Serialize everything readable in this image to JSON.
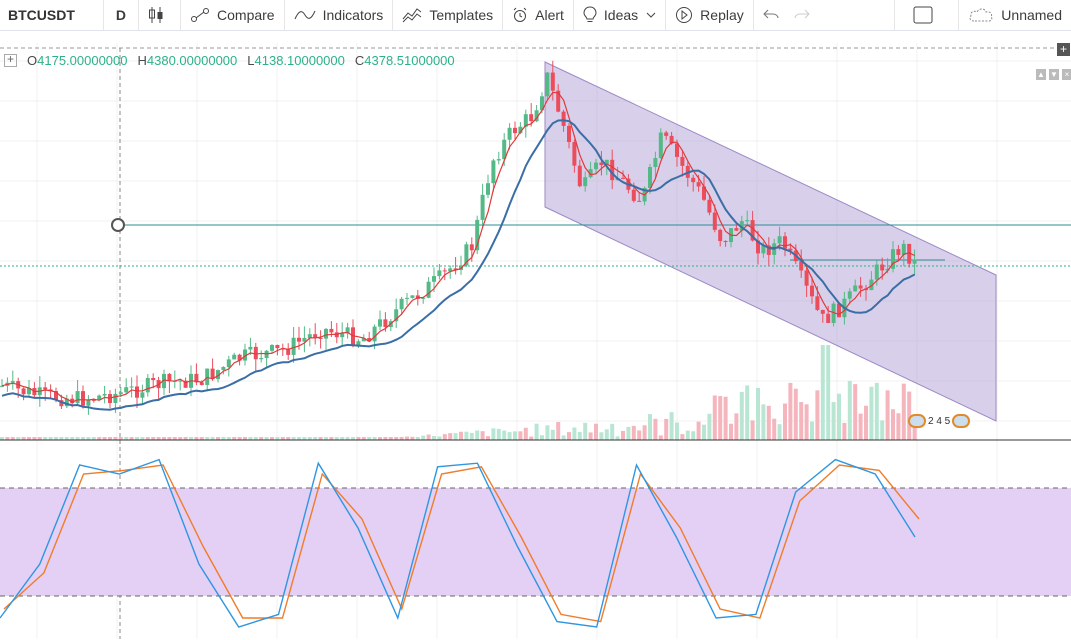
{
  "toolbar": {
    "symbol": "BTCUSDT",
    "interval": "D",
    "compare": "Compare",
    "indicators": "Indicators",
    "templates": "Templates",
    "alert": "Alert",
    "ideas": "Ideas",
    "replay": "Replay",
    "layout_name": "Unnamed"
  },
  "ohlc": {
    "o_label": "O",
    "o": "4175.00000000",
    "h_label": "H",
    "h": "4380.00000000",
    "l_label": "L",
    "l": "4138.10000000",
    "c_label": "C",
    "c": "4378.51000000"
  },
  "events": {
    "text": "2 4 5"
  },
  "colors": {
    "up": "#53b987",
    "down": "#eb4d5c",
    "ma_fast": "#e03a3a",
    "ma_slow": "#3a6ea5",
    "channel": "#b8a9d9",
    "stoch_band": "#e4cff5",
    "stoch_k": "#2f96e0",
    "stoch_d": "#ef7d2a",
    "hline": "#2a8c95"
  },
  "chart_data": {
    "type": "candlestick",
    "candles_close_trend": [
      100,
      96,
      95,
      97,
      104,
      115,
      130,
      150,
      175,
      210,
      260,
      290,
      275,
      260,
      255,
      240,
      220,
      200,
      185,
      170,
      175,
      195,
      210,
      215
    ],
    "stochastic_k": [
      10,
      40,
      95,
      90,
      98,
      40,
      5,
      12,
      96,
      60,
      10,
      94,
      96,
      50,
      8,
      5,
      95,
      55,
      10,
      12,
      80,
      98,
      90,
      55
    ],
    "stochastic_d": [
      15,
      35,
      90,
      92,
      95,
      50,
      10,
      10,
      90,
      65,
      15,
      90,
      94,
      55,
      12,
      8,
      90,
      60,
      15,
      10,
      75,
      95,
      92,
      65
    ]
  }
}
